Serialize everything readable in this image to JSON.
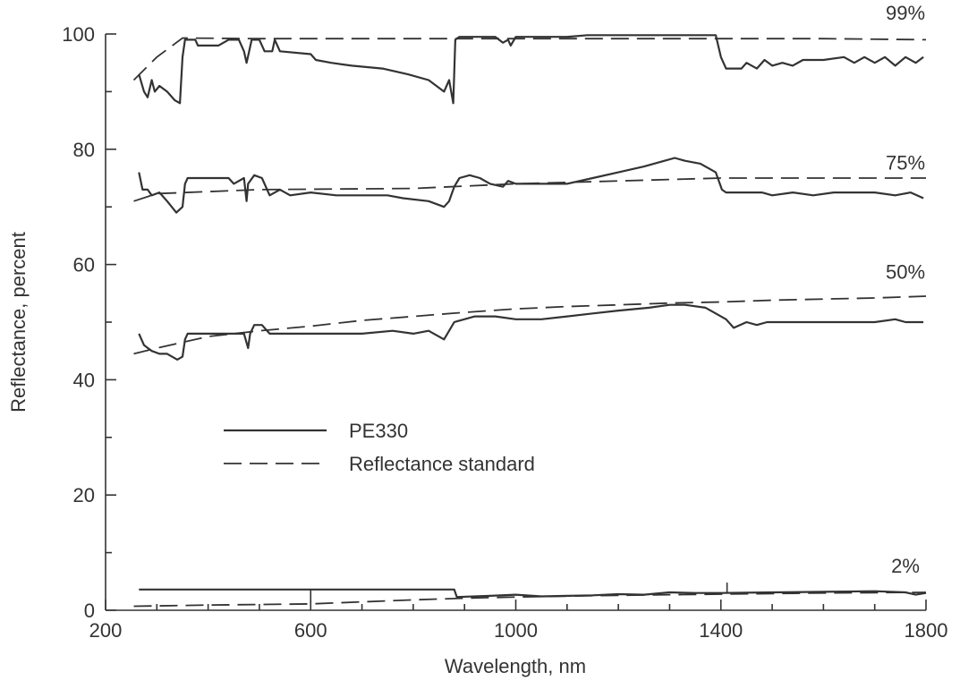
{
  "chart_data": {
    "type": "line",
    "title": "",
    "xlabel": "Wavelength, nm",
    "ylabel": "Reflectance, percent",
    "xlim": [
      200,
      1800
    ],
    "ylim": [
      0,
      100
    ],
    "x_ticks": [
      200,
      600,
      1000,
      1400,
      1800
    ],
    "x_minor_ticks": [
      300,
      400,
      500,
      700,
      800,
      900,
      1100,
      1200,
      1300,
      1500,
      1600,
      1700
    ],
    "y_ticks": [
      0,
      20,
      40,
      60,
      80,
      100
    ],
    "y_minor_ticks": [
      10,
      30,
      50,
      70,
      90
    ],
    "grid": false,
    "legend": {
      "placement": "center-left",
      "entries": [
        {
          "label": "PE330",
          "style": "solid"
        },
        {
          "label": "Reflectance standard",
          "style": "dashed"
        }
      ]
    },
    "groups": [
      {
        "label": "99%",
        "label_x": 1760,
        "label_y": 102.5,
        "series": [
          {
            "style": "solid",
            "points": [
              [
                265,
                93
              ],
              [
                275,
                90
              ],
              [
                282,
                89
              ],
              [
                290,
                92
              ],
              [
                296,
                90
              ],
              [
                305,
                91
              ],
              [
                320,
                90
              ],
              [
                335,
                88.5
              ],
              [
                345,
                88
              ],
              [
                350,
                96
              ],
              [
                355,
                99
              ],
              [
                375,
                99
              ],
              [
                380,
                98
              ],
              [
                420,
                98
              ],
              [
                440,
                99
              ],
              [
                460,
                99
              ],
              [
                470,
                97
              ],
              [
                475,
                95
              ],
              [
                480,
                97
              ],
              [
                485,
                99
              ],
              [
                500,
                99
              ],
              [
                510,
                97
              ],
              [
                525,
                97
              ],
              [
                530,
                99
              ],
              [
                540,
                97
              ],
              [
                600,
                96.5
              ],
              [
                610,
                95.5
              ],
              [
                640,
                95
              ],
              [
                680,
                94.5
              ],
              [
                740,
                94
              ],
              [
                790,
                93
              ],
              [
                830,
                92
              ],
              [
                860,
                90
              ],
              [
                870,
                92
              ],
              [
                878,
                88
              ],
              [
                882,
                99
              ],
              [
                890,
                99.5
              ],
              [
                960,
                99.5
              ],
              [
                975,
                98.5
              ],
              [
                985,
                99
              ],
              [
                990,
                98
              ],
              [
                1000,
                99.5
              ],
              [
                1100,
                99.5
              ],
              [
                1140,
                99.8
              ],
              [
                1250,
                99.8
              ],
              [
                1390,
                99.8
              ],
              [
                1400,
                96
              ],
              [
                1410,
                94
              ],
              [
                1440,
                94
              ],
              [
                1450,
                95
              ],
              [
                1470,
                94
              ],
              [
                1485,
                95.5
              ],
              [
                1500,
                94.5
              ],
              [
                1520,
                95
              ],
              [
                1540,
                94.5
              ],
              [
                1560,
                95.5
              ],
              [
                1600,
                95.5
              ],
              [
                1640,
                96
              ],
              [
                1660,
                95
              ],
              [
                1680,
                96
              ],
              [
                1700,
                95
              ],
              [
                1720,
                96
              ],
              [
                1740,
                94.5
              ],
              [
                1760,
                96
              ],
              [
                1780,
                95
              ],
              [
                1795,
                96
              ]
            ]
          },
          {
            "style": "dashed",
            "points": [
              [
                255,
                92
              ],
              [
                300,
                96
              ],
              [
                350,
                99.3
              ],
              [
                500,
                99.2
              ],
              [
                800,
                99.2
              ],
              [
                1200,
                99.2
              ],
              [
                1600,
                99.2
              ],
              [
                1800,
                99
              ]
            ]
          }
        ]
      },
      {
        "label": "75%",
        "label_x": 1760,
        "label_y": 76.5,
        "series": [
          {
            "style": "solid",
            "points": [
              [
                265,
                76
              ],
              [
                272,
                73
              ],
              [
                282,
                73
              ],
              [
                290,
                72
              ],
              [
                305,
                72.5
              ],
              [
                320,
                71
              ],
              [
                338,
                69
              ],
              [
                350,
                70
              ],
              [
                355,
                74
              ],
              [
                360,
                75
              ],
              [
                440,
                75
              ],
              [
                450,
                74
              ],
              [
                470,
                75
              ],
              [
                475,
                71
              ],
              [
                478,
                74
              ],
              [
                490,
                75.5
              ],
              [
                505,
                75
              ],
              [
                520,
                72
              ],
              [
                540,
                73
              ],
              [
                560,
                72
              ],
              [
                600,
                72.5
              ],
              [
                650,
                72
              ],
              [
                700,
                72
              ],
              [
                750,
                72
              ],
              [
                780,
                71.5
              ],
              [
                830,
                71
              ],
              [
                860,
                70
              ],
              [
                870,
                71
              ],
              [
                880,
                73.5
              ],
              [
                890,
                75
              ],
              [
                910,
                75.5
              ],
              [
                930,
                75
              ],
              [
                950,
                74
              ],
              [
                975,
                73.5
              ],
              [
                985,
                74.5
              ],
              [
                1000,
                74
              ],
              [
                1050,
                74
              ],
              [
                1100,
                74
              ],
              [
                1150,
                75
              ],
              [
                1200,
                76
              ],
              [
                1250,
                77
              ],
              [
                1290,
                78
              ],
              [
                1310,
                78.5
              ],
              [
                1330,
                78
              ],
              [
                1360,
                77.5
              ],
              [
                1390,
                76
              ],
              [
                1402,
                73
              ],
              [
                1410,
                72.5
              ],
              [
                1440,
                72.5
              ],
              [
                1480,
                72.5
              ],
              [
                1500,
                72
              ],
              [
                1540,
                72.5
              ],
              [
                1580,
                72
              ],
              [
                1620,
                72.5
              ],
              [
                1660,
                72.5
              ],
              [
                1700,
                72.5
              ],
              [
                1740,
                72
              ],
              [
                1770,
                72.5
              ],
              [
                1795,
                71.5
              ]
            ]
          },
          {
            "style": "dashed",
            "points": [
              [
                255,
                71
              ],
              [
                300,
                72.3
              ],
              [
                500,
                73
              ],
              [
                800,
                73.2
              ],
              [
                1000,
                74
              ],
              [
                1200,
                74.5
              ],
              [
                1400,
                75
              ],
              [
                1600,
                75
              ],
              [
                1800,
                75
              ]
            ]
          }
        ]
      },
      {
        "label": "50%",
        "label_x": 1760,
        "label_y": 57.5,
        "series": [
          {
            "style": "solid",
            "points": [
              [
                265,
                48
              ],
              [
                275,
                46
              ],
              [
                290,
                45
              ],
              [
                305,
                44.5
              ],
              [
                320,
                44.5
              ],
              [
                340,
                43.5
              ],
              [
                350,
                44
              ],
              [
                355,
                47
              ],
              [
                360,
                48
              ],
              [
                440,
                48
              ],
              [
                470,
                48
              ],
              [
                478,
                45.5
              ],
              [
                482,
                48
              ],
              [
                490,
                49.5
              ],
              [
                505,
                49.5
              ],
              [
                520,
                48
              ],
              [
                600,
                48
              ],
              [
                700,
                48
              ],
              [
                760,
                48.5
              ],
              [
                800,
                48
              ],
              [
                830,
                48.5
              ],
              [
                860,
                47
              ],
              [
                880,
                50
              ],
              [
                920,
                51
              ],
              [
                960,
                51
              ],
              [
                1000,
                50.5
              ],
              [
                1050,
                50.5
              ],
              [
                1100,
                51
              ],
              [
                1150,
                51.5
              ],
              [
                1200,
                52
              ],
              [
                1260,
                52.5
              ],
              [
                1300,
                53
              ],
              [
                1330,
                53
              ],
              [
                1370,
                52.5
              ],
              [
                1390,
                51.5
              ],
              [
                1410,
                50.5
              ],
              [
                1425,
                49
              ],
              [
                1450,
                50
              ],
              [
                1470,
                49.5
              ],
              [
                1490,
                50
              ],
              [
                1550,
                50
              ],
              [
                1600,
                50
              ],
              [
                1650,
                50
              ],
              [
                1700,
                50
              ],
              [
                1740,
                50.5
              ],
              [
                1760,
                50
              ],
              [
                1795,
                50
              ]
            ]
          },
          {
            "style": "dashed",
            "points": [
              [
                255,
                44.5
              ],
              [
                300,
                45.5
              ],
              [
                400,
                47.5
              ],
              [
                500,
                48.5
              ],
              [
                600,
                49.3
              ],
              [
                700,
                50.3
              ],
              [
                800,
                51
              ],
              [
                900,
                51.7
              ],
              [
                1000,
                52.3
              ],
              [
                1100,
                52.7
              ],
              [
                1200,
                53
              ],
              [
                1300,
                53.3
              ],
              [
                1400,
                53.5
              ],
              [
                1500,
                53.8
              ],
              [
                1600,
                54
              ],
              [
                1700,
                54.2
              ],
              [
                1800,
                54.5
              ]
            ]
          }
        ]
      },
      {
        "label": "2%",
        "label_x": 1760,
        "label_y": 6.5,
        "series": [
          {
            "style": "solid",
            "points": [
              [
                265,
                3.6
              ],
              [
                500,
                3.6
              ],
              [
                700,
                3.6
              ],
              [
                880,
                3.6
              ],
              [
                885,
                2.3
              ],
              [
                950,
                2.5
              ],
              [
                1000,
                2.7
              ],
              [
                1050,
                2.4
              ],
              [
                1100,
                2.5
              ],
              [
                1150,
                2.6
              ],
              [
                1200,
                2.8
              ],
              [
                1250,
                2.7
              ],
              [
                1300,
                3.1
              ],
              [
                1350,
                3
              ],
              [
                1400,
                3
              ],
              [
                1500,
                3.1
              ],
              [
                1600,
                3.2
              ],
              [
                1700,
                3.3
              ],
              [
                1760,
                3.1
              ],
              [
                1780,
                2.7
              ],
              [
                1800,
                3
              ]
            ]
          },
          {
            "style": "dashed",
            "points": [
              [
                255,
                0.7
              ],
              [
                400,
                0.9
              ],
              [
                600,
                1.1
              ],
              [
                800,
                1.8
              ],
              [
                900,
                2.1
              ],
              [
                1000,
                2.3
              ],
              [
                1200,
                2.6
              ],
              [
                1400,
                2.8
              ],
              [
                1600,
                3
              ],
              [
                1800,
                3.1
              ]
            ]
          }
        ]
      }
    ]
  }
}
